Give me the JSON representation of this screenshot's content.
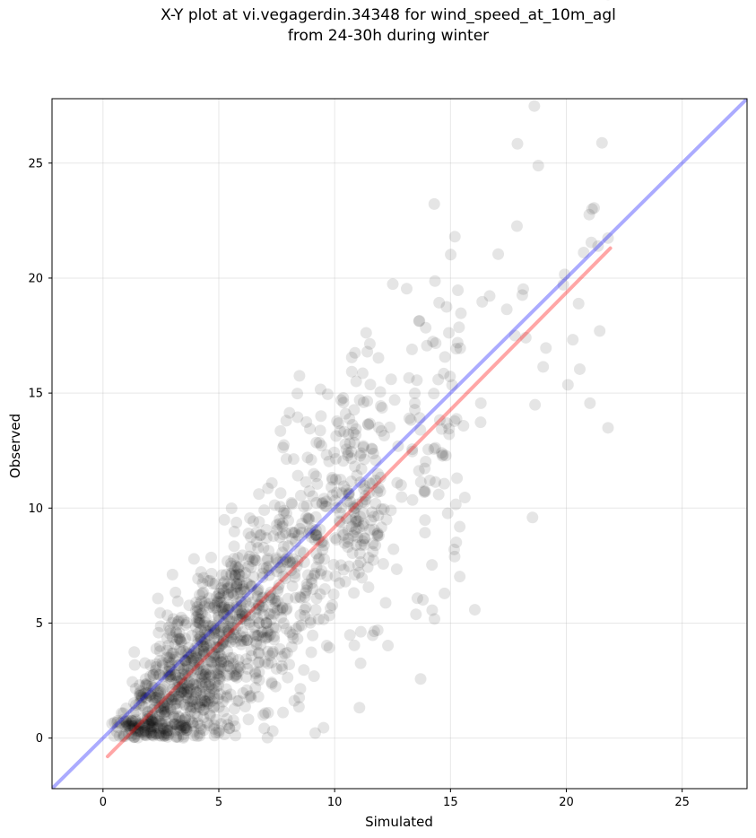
{
  "chart_data": {
    "type": "scatter",
    "title_line1": "X-Y plot at vi.vegagerdin.34348 for wind_speed_at_10m_agl",
    "title_line2": "from 24-30h during winter",
    "xlabel": "Simulated",
    "ylabel": "Observed",
    "xlim": [
      -2.2,
      27.8
    ],
    "ylim": [
      -2.2,
      27.8
    ],
    "x_ticks": [
      0,
      5,
      10,
      15,
      20,
      25
    ],
    "y_ticks": [
      0,
      5,
      10,
      15,
      20,
      25
    ],
    "grid": true,
    "point_color": "#000000",
    "identity_line_color": "#0000ff",
    "fit_line_color": "#ff0000",
    "identity_line": {
      "x": [
        -2.2,
        27.8
      ],
      "y": [
        -2.2,
        27.8
      ]
    },
    "fit_line": {
      "x": [
        0.2,
        21.9
      ],
      "y": [
        -0.8,
        21.3
      ]
    },
    "points_x": [],
    "points_y": []
  }
}
